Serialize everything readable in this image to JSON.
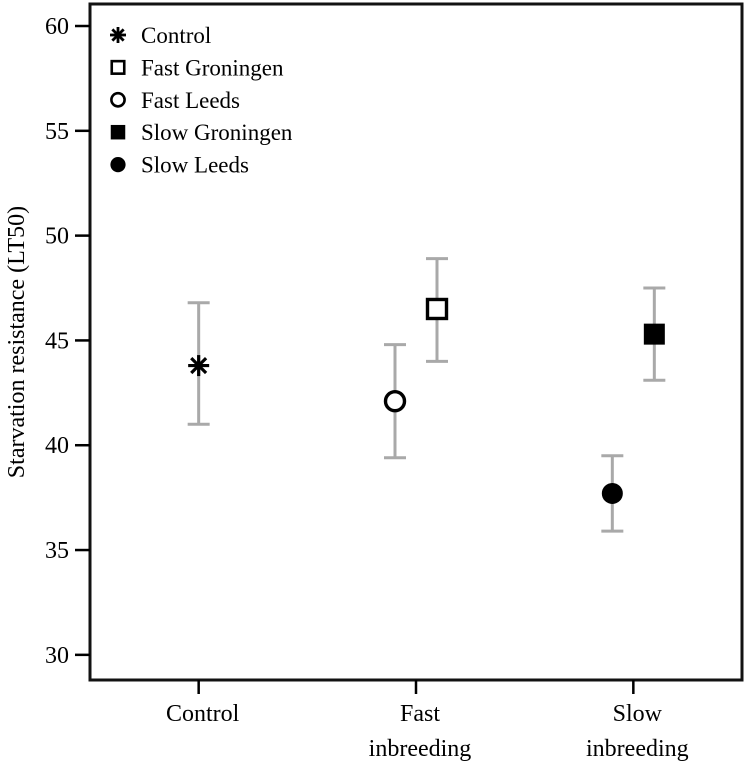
{
  "figure": {
    "ylabel": "Starvation resistance (LT50)"
  },
  "chart_data": {
    "type": "scatter",
    "title": "",
    "xlabel": "",
    "ylabel": "Starvation resistance (LT50)",
    "ylim": [
      28.8,
      61.05
    ],
    "yticks": [
      30,
      35,
      40,
      45,
      50,
      55,
      60
    ],
    "grid": false,
    "legend_position": "top-left-inside",
    "categories": [
      {
        "id": "control",
        "label_lines": [
          "Control"
        ]
      },
      {
        "id": "fast",
        "label_lines": [
          "Fast",
          "inbreeding"
        ]
      },
      {
        "id": "slow",
        "label_lines": [
          "Slow",
          "inbreeding"
        ]
      }
    ],
    "series": [
      {
        "name": "Control",
        "marker": "asterisk",
        "fill": "black",
        "category": "control",
        "offset": 0,
        "value": 43.8,
        "ci_low": 41.0,
        "ci_high": 46.8
      },
      {
        "name": "Fast Leeds",
        "marker": "circle",
        "fill": "open",
        "category": "fast",
        "offset": -21,
        "value": 42.1,
        "ci_low": 39.4,
        "ci_high": 44.8
      },
      {
        "name": "Fast Groningen",
        "marker": "square",
        "fill": "open",
        "category": "fast",
        "offset": 21,
        "value": 46.5,
        "ci_low": 44.0,
        "ci_high": 48.9
      },
      {
        "name": "Slow Leeds",
        "marker": "circle",
        "fill": "filled",
        "category": "slow",
        "offset": -21,
        "value": 37.7,
        "ci_low": 35.9,
        "ci_high": 39.5
      },
      {
        "name": "Slow Groningen",
        "marker": "square",
        "fill": "filled",
        "category": "slow",
        "offset": 21,
        "value": 45.3,
        "ci_low": 43.1,
        "ci_high": 47.5
      }
    ],
    "legend": [
      {
        "label": "Control",
        "marker": "asterisk",
        "fill": "black"
      },
      {
        "label": "Fast Groningen",
        "marker": "square",
        "fill": "open"
      },
      {
        "label": "Fast Leeds",
        "marker": "circle",
        "fill": "open"
      },
      {
        "label": "Slow Groningen",
        "marker": "square",
        "fill": "filled"
      },
      {
        "label": "Slow Leeds",
        "marker": "circle",
        "fill": "filled"
      }
    ],
    "colors": {
      "marker": "#000000",
      "error_bar": "#a9a9a9",
      "frame": "#121212",
      "background": "#ffffff"
    }
  }
}
